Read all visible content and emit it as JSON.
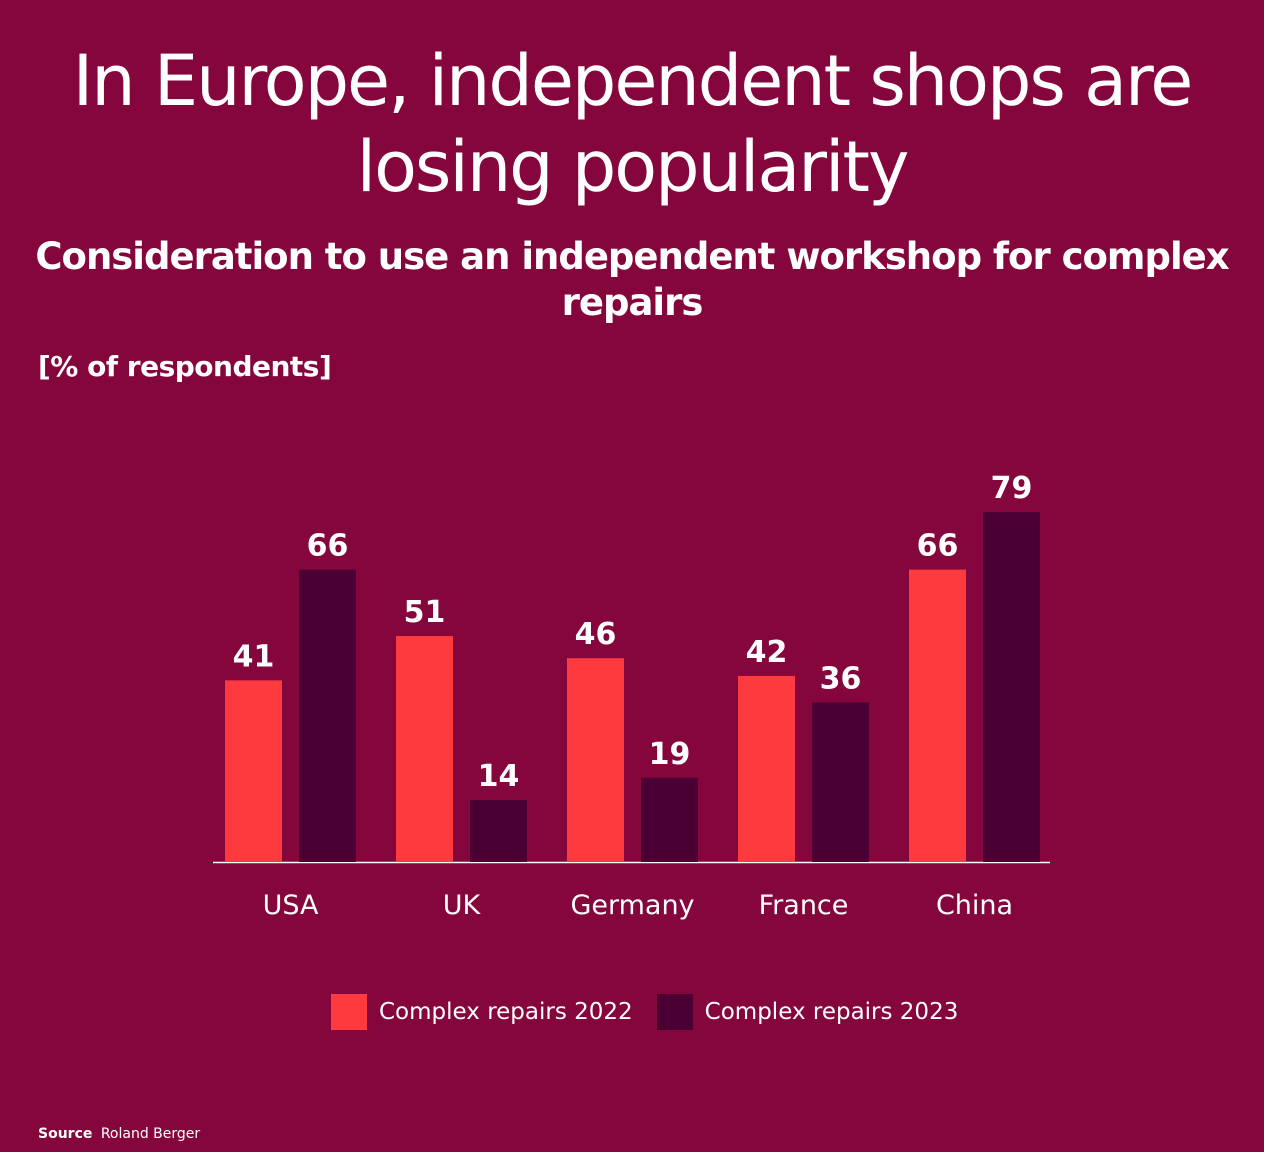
{
  "chart_data": {
    "type": "bar",
    "title": "In Europe, independent shops are losing popularity",
    "subtitle": "Consideration to use an independent workshop for complex repairs",
    "unit_label": "[% of respondents]",
    "categories": [
      "USA",
      "UK",
      "Germany",
      "France",
      "China"
    ],
    "series": [
      {
        "name": "Complex repairs 2022",
        "values": [
          41,
          51,
          46,
          42,
          66
        ],
        "color": "#fd3a3e"
      },
      {
        "name": "Complex repairs 2023",
        "values": [
          66,
          14,
          19,
          36,
          79
        ],
        "color": "#4b0034"
      }
    ],
    "ylim": [
      0,
      80
    ],
    "grid": false,
    "legend_position": "bottom-center"
  },
  "source": {
    "label": "Source",
    "text": "Roland Berger"
  },
  "colors": {
    "background": "#85063c",
    "text": "#ffffff"
  }
}
